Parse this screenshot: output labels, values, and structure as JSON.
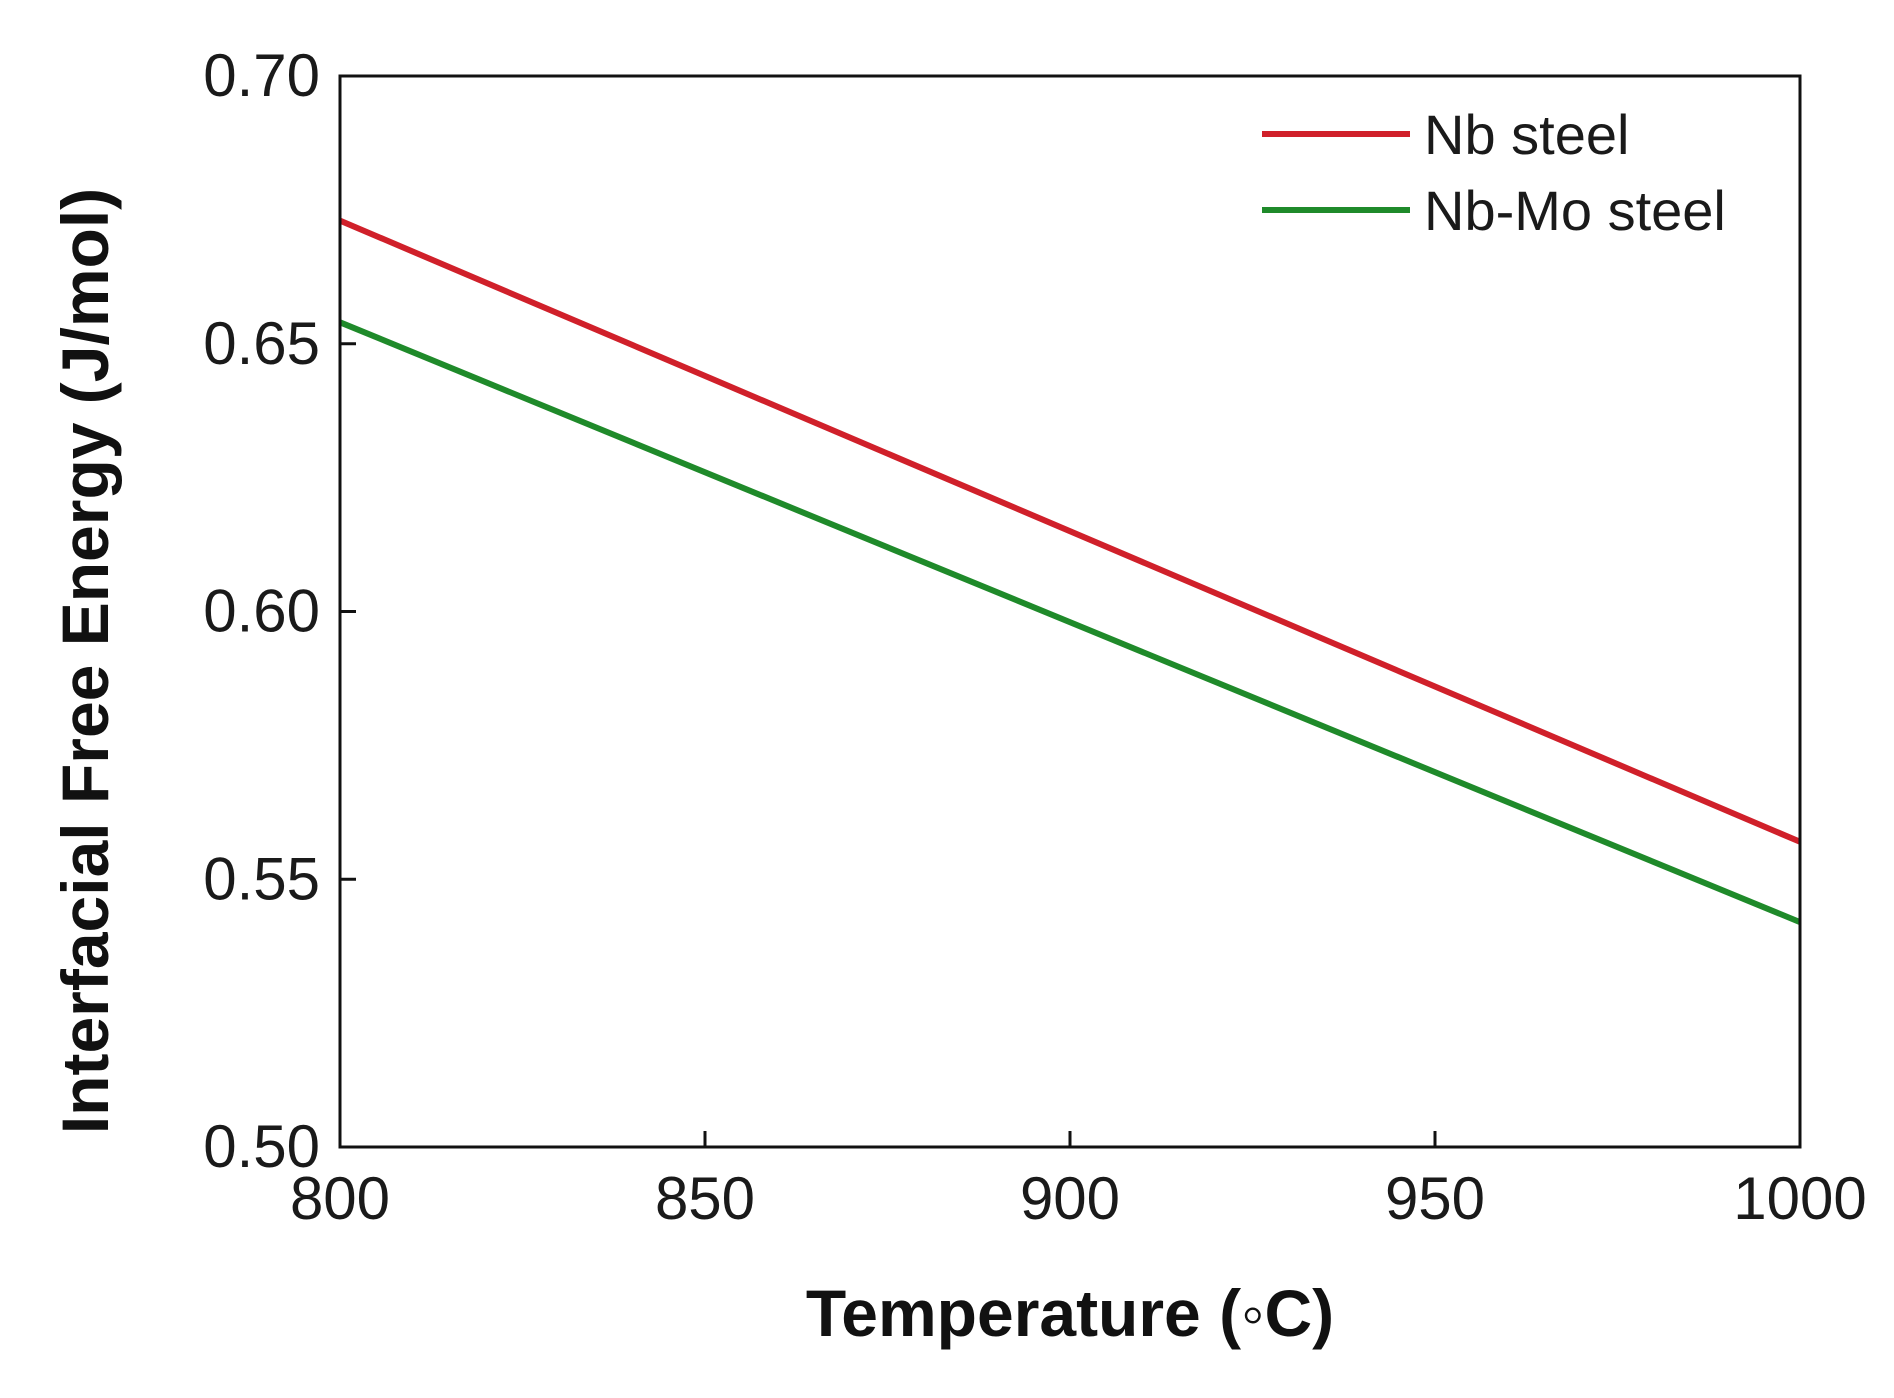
{
  "chart_data": {
    "type": "line",
    "xlabel": "Temperature (◦C)",
    "ylabel": "Interfacial Free Energy (J/mol)",
    "xlim": [
      800,
      1000
    ],
    "ylim": [
      0.5,
      0.7
    ],
    "xticks": [
      800,
      850,
      900,
      950,
      1000
    ],
    "xtick_labels": [
      "800",
      "850",
      "900",
      "950",
      "1000"
    ],
    "yticks": [
      0.5,
      0.55,
      0.6,
      0.65,
      0.7
    ],
    "ytick_labels": [
      "0.50",
      "0.55",
      "0.60",
      "0.65",
      "0.70"
    ],
    "grid": false,
    "legend_position": "top-right",
    "series": [
      {
        "name": "Nb steel",
        "color": "#d0202a",
        "x": [
          800,
          1000
        ],
        "y": [
          0.673,
          0.557
        ]
      },
      {
        "name": "Nb-Mo steel",
        "color": "#1f8a2a",
        "x": [
          800,
          1000
        ],
        "y": [
          0.654,
          0.542
        ]
      }
    ]
  }
}
